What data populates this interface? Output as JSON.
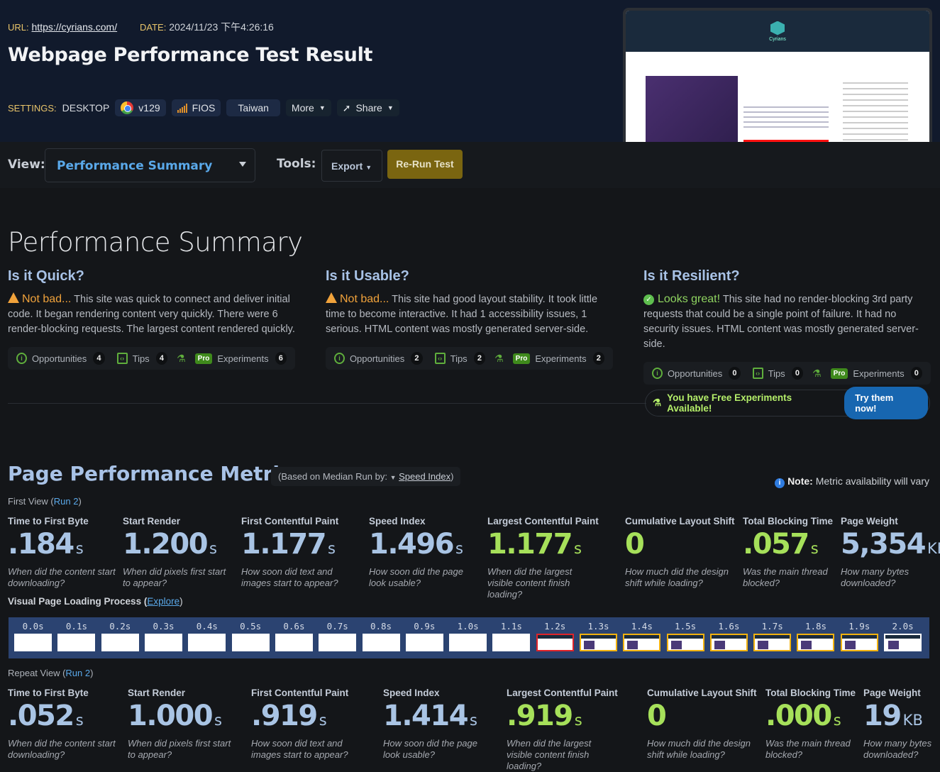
{
  "header": {
    "url_label": "URL:",
    "url": "https://cyrians.com/",
    "date_label": "DATE:",
    "date": "2024/11/23 下午4:26:16",
    "title": "Webpage Performance Test Result",
    "settings_label": "SETTINGS:",
    "device": "DESKTOP",
    "browser": "v129",
    "connection": "FIOS",
    "location": "Taiwan",
    "more": "More",
    "share": "Share"
  },
  "thumbnail": {
    "site_name": "Cyrians"
  },
  "toolbar": {
    "view_label": "View:",
    "view_value": "Performance Summary",
    "tools_label": "Tools:",
    "export": "Export",
    "rerun": "Re-Run Test"
  },
  "summary": {
    "title": "Performance Summary",
    "sections": [
      {
        "heading": "Is it Quick?",
        "status": "Not bad...",
        "status_type": "warning",
        "text": "This site was quick to connect and deliver initial code. It began rendering content very quickly. There were 6 render-blocking requests. The largest content rendered quickly.",
        "opportunities": "4",
        "tips": "4",
        "experiments": "6"
      },
      {
        "heading": "Is it Usable?",
        "status": "Not bad...",
        "status_type": "warning",
        "text": "This site had good layout stability. It took little time to become interactive. It had 1 accessibility issues, 1 serious. HTML content was mostly generated server-side.",
        "opportunities": "2",
        "tips": "2",
        "experiments": "2"
      },
      {
        "heading": "Is it Resilient?",
        "status": "Looks great!",
        "status_type": "good",
        "text": "This site had no render-blocking 3rd party requests that could be a single point of failure. It had no security issues. HTML content was mostly generated server-side.",
        "opportunities": "0",
        "tips": "0",
        "experiments": "0"
      }
    ],
    "labels": {
      "opportunities": "Opportunities",
      "tips": "Tips",
      "pro": "Pro",
      "experiments": "Experiments"
    },
    "free_experiments": "You have Free Experiments Available!",
    "try_now": "Try them now!"
  },
  "metrics": {
    "title": "Page Performance Metrics",
    "median_prefix": "(Based on Median Run by:",
    "median_metric": "Speed Index",
    "median_suffix": ")",
    "note_label": "Note:",
    "note_text": "Metric availability will vary",
    "first_view": {
      "label": "First View (",
      "run": "Run 2",
      "close": ")",
      "items": [
        {
          "title": "Time to First Byte",
          "value": ".184",
          "unit": "s",
          "desc": "When did the content start downloading?",
          "color": "blue"
        },
        {
          "title": "Start Render",
          "value": "1.200",
          "unit": "s",
          "desc": "When did pixels first start to appear?",
          "color": "blue"
        },
        {
          "title": "First Contentful Paint",
          "value": "1.177",
          "unit": "s",
          "desc": "How soon did text and images start to appear?",
          "color": "blue"
        },
        {
          "title": "Speed Index",
          "value": "1.496",
          "unit": "s",
          "desc": "How soon did the page look usable?",
          "color": "blue"
        },
        {
          "title": "Largest Contentful Paint",
          "value": "1.177",
          "unit": "s",
          "desc": "When did the largest visible content finish loading?",
          "color": "green"
        },
        {
          "title": "Cumulative Layout Shift",
          "value": "0",
          "unit": "",
          "desc": "How much did the design shift while loading?",
          "color": "green"
        },
        {
          "title": "Total Blocking Time",
          "value": ".057",
          "unit": "s",
          "desc": "Was the main thread blocked?",
          "color": "green"
        },
        {
          "title": "Page Weight",
          "value": "5,354",
          "unit": "KB",
          "desc": "How many bytes downloaded?",
          "color": "blue"
        }
      ]
    },
    "visual_label": "Visual Page Loading Process (",
    "explore": "Explore",
    "visual_close": ")",
    "filmstrip": [
      {
        "t": "0.0s",
        "state": "blank"
      },
      {
        "t": "0.1s",
        "state": "blank"
      },
      {
        "t": "0.2s",
        "state": "blank"
      },
      {
        "t": "0.3s",
        "state": "blank"
      },
      {
        "t": "0.4s",
        "state": "blank"
      },
      {
        "t": "0.5s",
        "state": "blank"
      },
      {
        "t": "0.6s",
        "state": "blank"
      },
      {
        "t": "0.7s",
        "state": "blank"
      },
      {
        "t": "0.8s",
        "state": "blank"
      },
      {
        "t": "0.9s",
        "state": "blank"
      },
      {
        "t": "1.0s",
        "state": "blank"
      },
      {
        "t": "1.1s",
        "state": "blank"
      },
      {
        "t": "1.2s",
        "state": "first-change"
      },
      {
        "t": "1.3s",
        "state": "changed"
      },
      {
        "t": "1.4s",
        "state": "changed"
      },
      {
        "t": "1.5s",
        "state": "changed"
      },
      {
        "t": "1.6s",
        "state": "changed"
      },
      {
        "t": "1.7s",
        "state": "changed"
      },
      {
        "t": "1.8s",
        "state": "changed"
      },
      {
        "t": "1.9s",
        "state": "changed"
      },
      {
        "t": "2.0s",
        "state": "complete"
      }
    ],
    "repeat_view": {
      "label": "Repeat View (",
      "run": "Run 2",
      "close": ")",
      "items": [
        {
          "title": "Time to First Byte",
          "value": ".052",
          "unit": "s",
          "desc": "When did the content start downloading?",
          "color": "blue"
        },
        {
          "title": "Start Render",
          "value": "1.000",
          "unit": "s",
          "desc": "When did pixels first start to appear?",
          "color": "blue"
        },
        {
          "title": "First Contentful Paint",
          "value": ".919",
          "unit": "s",
          "desc": "How soon did text and images start to appear?",
          "color": "blue"
        },
        {
          "title": "Speed Index",
          "value": "1.414",
          "unit": "s",
          "desc": "How soon did the page look usable?",
          "color": "blue"
        },
        {
          "title": "Largest Contentful Paint",
          "value": ".919",
          "unit": "s",
          "desc": "When did the largest visible content finish loading?",
          "color": "green"
        },
        {
          "title": "Cumulative Layout Shift",
          "value": "0",
          "unit": "",
          "desc": "How much did the design shift while loading?",
          "color": "green"
        },
        {
          "title": "Total Blocking Time",
          "value": ".000",
          "unit": "s",
          "desc": "Was the main thread blocked?",
          "color": "green"
        },
        {
          "title": "Page Weight",
          "value": "19",
          "unit": "KB",
          "desc": "How many bytes downloaded?",
          "color": "blue"
        }
      ]
    }
  }
}
